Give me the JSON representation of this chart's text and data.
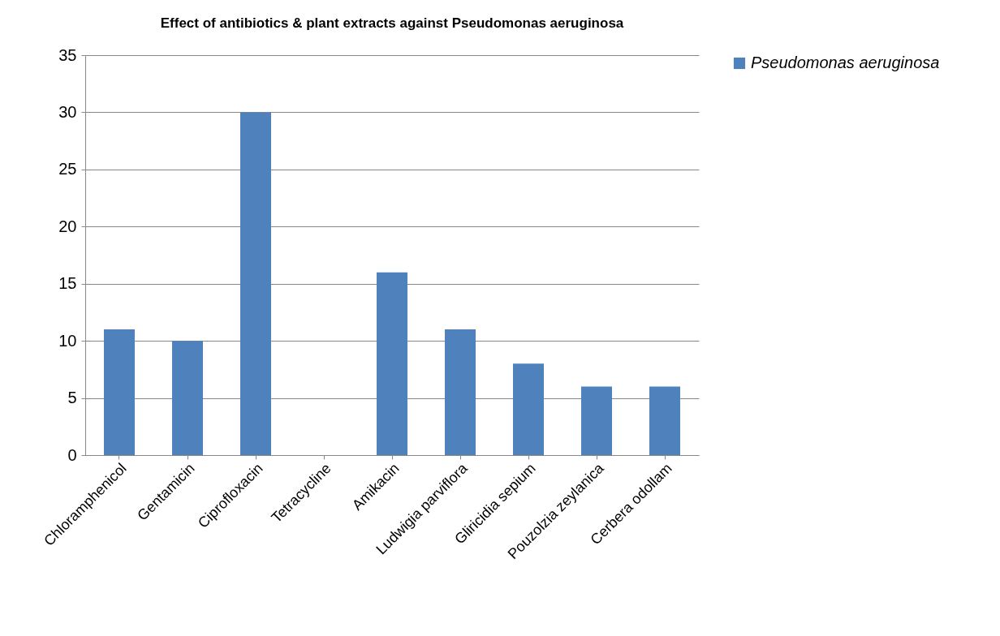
{
  "chart_data": {
    "type": "bar",
    "title": "Effect of antibiotics & plant extracts against Pseudomonas aeruginosa",
    "categories": [
      "Chloramphenicol",
      "Gentamicin",
      "Ciprofloxacin",
      "Tetracycline",
      "Amikacin",
      "Ludwigia parviflora",
      "Gliricidia sepium",
      "Pouzolzia zeylanica",
      "Cerbera odollam"
    ],
    "series": [
      {
        "name": "Pseudomonas aeruginosa",
        "color": "#4f81bd",
        "values": [
          11,
          10,
          30,
          0,
          16,
          11,
          8,
          6,
          6
        ]
      }
    ],
    "ylim": [
      0,
      35
    ],
    "yticks": [
      0,
      5,
      10,
      15,
      20,
      25,
      30,
      35
    ],
    "grid": "y",
    "legend": "right"
  }
}
